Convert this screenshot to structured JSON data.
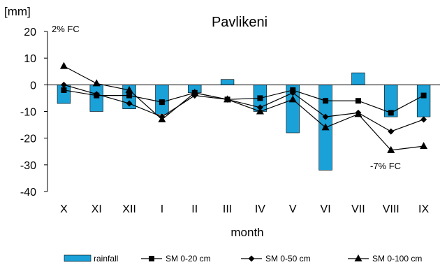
{
  "chart_data": {
    "type": "bar",
    "title": "Pavlikeni",
    "ylabel": "[mm]",
    "xlabel": "month",
    "ylim": [
      -40,
      20
    ],
    "yticks": [
      20,
      10,
      0,
      -10,
      -20,
      -30,
      -40
    ],
    "categories": [
      "X",
      "XI",
      "XII",
      "I",
      "II",
      "III",
      "IV",
      "V",
      "VI",
      "VII",
      "VIII",
      "IX"
    ],
    "series": [
      {
        "name": "rainfall",
        "kind": "bar",
        "color": "#1aa1d8",
        "values": [
          -7,
          -10,
          -9,
          -11,
          -3,
          2,
          -10,
          -18,
          -32,
          4.5,
          -12,
          -12
        ]
      },
      {
        "name": "SM 0-20 cm",
        "kind": "line",
        "marker": "square",
        "color": "#000000",
        "values": [
          -2,
          -4,
          -4,
          -6.5,
          -3,
          -5.5,
          -5,
          -2,
          -6,
          -6,
          -10.5,
          -4
        ]
      },
      {
        "name": "SM 0-50 cm",
        "kind": "line",
        "marker": "diamond",
        "color": "#000000",
        "values": [
          0,
          -3.5,
          -7,
          -12,
          -4,
          -5.5,
          -8.5,
          -3,
          -12,
          -10.5,
          -17.5,
          -13
        ]
      },
      {
        "name": "SM 0-100 cm",
        "kind": "line",
        "marker": "triangle",
        "color": "#000000",
        "values": [
          7,
          0.5,
          -2,
          -13,
          -3,
          -5.5,
          -10,
          -5.5,
          -16,
          -11,
          -24.5,
          -23
        ]
      }
    ],
    "annotations": [
      {
        "text": "2% FC",
        "near": "X",
        "position": "top-left"
      },
      {
        "text": "-7% FC",
        "near": "VIII-IX",
        "position": "below lines"
      }
    ],
    "grid": false,
    "legend": "bottom"
  }
}
